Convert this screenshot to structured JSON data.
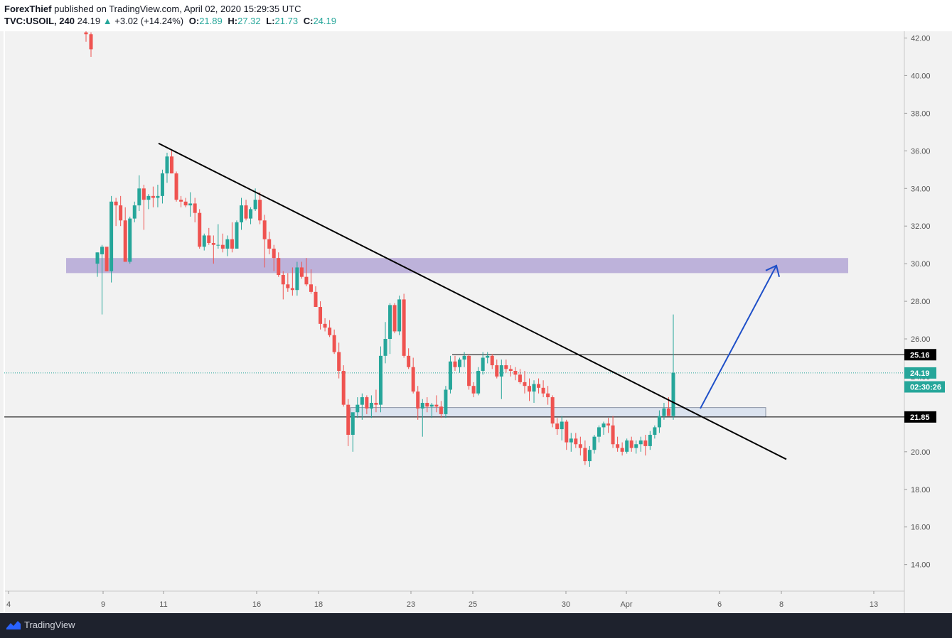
{
  "header": {
    "author": "ForexThief",
    "published_text": "published on TradingView.com, April 02, 2020 15:29:35 UTC",
    "symbol": "TVC:USOIL, 240",
    "last": "24.19",
    "change_arrow": "▲",
    "change": "+3.02 (+14.24%)",
    "open_label": "O:",
    "open": "21.89",
    "high_label": "H:",
    "high": "27.32",
    "low_label": "L:",
    "low": "21.73",
    "close_label": "C:",
    "close": "24.19"
  },
  "footer": {
    "brand": "TradingView",
    "logo_icon": "tradingview-logo-icon"
  },
  "colors": {
    "up": "#26a69a",
    "down": "#ef5350",
    "zone": "#b4a7d6",
    "support_zone": "#dbe3ef",
    "arrow": "#1e4fc8",
    "trendline": "#000000"
  },
  "chart_data": {
    "type": "candlestick",
    "symbol": "TVC:USOIL",
    "interval": "240",
    "y_ticks": [
      "42.00",
      "40.00",
      "38.00",
      "36.00",
      "34.00",
      "32.00",
      "30.00",
      "28.00",
      "26.00",
      "24.00",
      "22.00",
      "20.00",
      "18.00",
      "16.00",
      "14.00"
    ],
    "x_ticks": [
      "4",
      "9",
      "11",
      "16",
      "18",
      "23",
      "25",
      "30",
      "Apr",
      "6",
      "8",
      "13"
    ],
    "ylim": [
      12.5,
      43.0
    ],
    "price_labels": [
      {
        "label": "25.16",
        "value": 25.16,
        "style": "level"
      },
      {
        "label": "24.19",
        "value": 24.19,
        "style": "last"
      },
      {
        "label": "02:30:26",
        "value": 23.45,
        "style": "countdown"
      },
      {
        "label": "21.85",
        "value": 21.85,
        "style": "level"
      }
    ],
    "candles": [
      [
        42.3,
        42.6,
        41.8,
        42.2
      ],
      [
        42.2,
        42.3,
        41.0,
        41.4
      ],
      [
        30.0,
        30.6,
        29.3,
        30.6
      ],
      [
        30.5,
        31.0,
        27.3,
        30.9
      ],
      [
        30.9,
        30.6,
        29.6,
        29.6
      ],
      [
        29.6,
        33.6,
        29.0,
        33.3
      ],
      [
        33.3,
        33.5,
        32.0,
        33.1
      ],
      [
        33.1,
        33.6,
        32.0,
        32.3
      ],
      [
        32.3,
        33.0,
        30.1,
        30.1
      ],
      [
        30.1,
        32.5,
        30.0,
        32.4
      ],
      [
        32.4,
        33.3,
        32.2,
        33.1
      ],
      [
        33.1,
        34.7,
        32.8,
        34.0
      ],
      [
        34.0,
        34.2,
        31.8,
        33.4
      ],
      [
        33.4,
        33.7,
        32.9,
        33.6
      ],
      [
        33.6,
        34.1,
        33.0,
        33.5
      ],
      [
        33.5,
        34.2,
        33.0,
        33.6
      ],
      [
        33.6,
        35.0,
        33.2,
        34.8
      ],
      [
        34.8,
        35.9,
        34.3,
        35.7
      ],
      [
        35.7,
        36.0,
        34.8,
        34.8
      ],
      [
        34.8,
        34.9,
        33.3,
        33.4
      ],
      [
        33.4,
        33.6,
        33.0,
        33.3
      ],
      [
        33.3,
        33.5,
        33.0,
        33.1
      ],
      [
        33.1,
        33.8,
        32.5,
        33.2
      ],
      [
        33.2,
        33.5,
        32.2,
        32.7
      ],
      [
        32.7,
        32.9,
        30.8,
        30.9
      ],
      [
        30.9,
        31.6,
        30.7,
        31.5
      ],
      [
        31.5,
        31.9,
        31.0,
        31.1
      ],
      [
        31.1,
        31.5,
        30.0,
        31.0
      ],
      [
        31.0,
        32.1,
        30.8,
        31.0
      ],
      [
        31.0,
        31.6,
        30.6,
        30.8
      ],
      [
        30.8,
        31.5,
        30.4,
        31.3
      ],
      [
        31.3,
        32.2,
        30.6,
        30.8
      ],
      [
        30.8,
        32.3,
        30.8,
        32.2
      ],
      [
        32.2,
        33.5,
        31.8,
        33.1
      ],
      [
        33.1,
        33.4,
        32.3,
        32.4
      ],
      [
        32.4,
        33.0,
        32.1,
        32.9
      ],
      [
        32.9,
        34.0,
        32.8,
        33.4
      ],
      [
        33.4,
        33.8,
        32.1,
        32.3
      ],
      [
        32.3,
        32.6,
        29.8,
        31.3
      ],
      [
        31.3,
        31.7,
        30.5,
        30.8
      ],
      [
        30.8,
        31.0,
        29.6,
        30.3
      ],
      [
        30.3,
        30.6,
        29.3,
        29.4
      ],
      [
        29.4,
        29.6,
        28.1,
        28.9
      ],
      [
        28.9,
        29.5,
        28.5,
        28.7
      ],
      [
        28.7,
        29.8,
        28.3,
        28.6
      ],
      [
        28.6,
        30.1,
        28.3,
        29.8
      ],
      [
        29.8,
        30.1,
        29.2,
        29.3
      ],
      [
        29.3,
        30.3,
        28.8,
        28.9
      ],
      [
        28.9,
        29.7,
        28.4,
        28.5
      ],
      [
        28.5,
        28.8,
        27.7,
        27.7
      ],
      [
        27.7,
        28.0,
        26.5,
        26.8
      ],
      [
        26.8,
        27.1,
        26.4,
        26.6
      ],
      [
        26.6,
        27.0,
        26.1,
        26.2
      ],
      [
        26.2,
        26.5,
        25.2,
        25.3
      ],
      [
        25.3,
        25.8,
        23.9,
        24.3
      ],
      [
        24.3,
        24.6,
        22.4,
        22.5
      ],
      [
        22.5,
        22.8,
        20.3,
        20.9
      ],
      [
        20.9,
        21.8,
        20.0,
        22.1
      ],
      [
        22.1,
        22.9,
        21.8,
        22.5
      ],
      [
        22.5,
        23.1,
        21.7,
        22.9
      ],
      [
        22.9,
        23.0,
        22.0,
        22.3
      ],
      [
        22.3,
        23.0,
        21.8,
        22.6
      ],
      [
        22.6,
        23.3,
        22.1,
        22.5
      ],
      [
        22.5,
        25.6,
        22.1,
        25.1
      ],
      [
        25.1,
        26.9,
        24.7,
        26.0
      ],
      [
        26.0,
        27.9,
        25.2,
        27.8
      ],
      [
        27.8,
        27.9,
        26.3,
        26.4
      ],
      [
        26.4,
        28.3,
        26.2,
        28.1
      ],
      [
        28.1,
        28.4,
        25.0,
        25.1
      ],
      [
        25.1,
        25.5,
        24.4,
        24.5
      ],
      [
        24.5,
        25.0,
        23.1,
        23.2
      ],
      [
        23.2,
        23.5,
        21.7,
        22.3
      ],
      [
        22.3,
        22.8,
        20.8,
        22.6
      ],
      [
        22.6,
        22.9,
        22.1,
        22.4
      ],
      [
        22.4,
        22.6,
        21.8,
        22.5
      ],
      [
        22.5,
        23.0,
        22.1,
        22.4
      ],
      [
        22.4,
        22.7,
        21.8,
        22.0
      ],
      [
        22.0,
        23.5,
        21.8,
        23.3
      ],
      [
        23.3,
        25.1,
        23.1,
        24.8
      ],
      [
        24.8,
        25.1,
        24.3,
        24.5
      ],
      [
        24.5,
        25.0,
        24.2,
        24.9
      ],
      [
        24.9,
        25.3,
        24.5,
        25.1
      ],
      [
        25.1,
        25.2,
        23.3,
        23.5
      ],
      [
        23.5,
        23.7,
        22.9,
        23.1
      ],
      [
        23.1,
        24.5,
        23.0,
        24.3
      ],
      [
        24.3,
        25.3,
        24.1,
        25.0
      ],
      [
        25.0,
        25.3,
        24.7,
        25.1
      ],
      [
        25.1,
        25.2,
        24.4,
        24.6
      ],
      [
        24.6,
        24.9,
        23.9,
        24.0
      ],
      [
        24.0,
        24.9,
        22.8,
        24.6
      ],
      [
        24.6,
        24.9,
        24.2,
        24.4
      ],
      [
        24.4,
        24.6,
        24.0,
        24.3
      ],
      [
        24.3,
        24.5,
        23.8,
        24.1
      ],
      [
        24.1,
        24.4,
        23.6,
        23.7
      ],
      [
        23.7,
        24.3,
        23.1,
        23.5
      ],
      [
        23.5,
        23.9,
        22.7,
        23.2
      ],
      [
        23.2,
        23.8,
        22.6,
        23.6
      ],
      [
        23.6,
        23.9,
        23.1,
        23.4
      ],
      [
        23.4,
        23.8,
        22.9,
        23.1
      ],
      [
        23.1,
        23.5,
        22.5,
        22.9
      ],
      [
        22.9,
        23.0,
        21.3,
        21.5
      ],
      [
        21.5,
        21.8,
        20.9,
        21.2
      ],
      [
        21.2,
        21.9,
        20.6,
        21.6
      ],
      [
        21.6,
        21.7,
        20.1,
        20.5
      ],
      [
        20.5,
        21.0,
        20.0,
        20.7
      ],
      [
        20.7,
        21.0,
        20.2,
        20.4
      ],
      [
        20.4,
        20.8,
        19.8,
        20.2
      ],
      [
        20.2,
        20.6,
        19.3,
        19.5
      ],
      [
        19.5,
        20.3,
        19.2,
        20.1
      ],
      [
        20.1,
        20.9,
        19.9,
        20.8
      ],
      [
        20.8,
        21.4,
        20.5,
        21.3
      ],
      [
        21.3,
        21.6,
        20.9,
        21.5
      ],
      [
        21.5,
        21.8,
        21.0,
        21.4
      ],
      [
        21.4,
        21.9,
        20.2,
        20.4
      ],
      [
        20.4,
        20.8,
        20.0,
        20.2
      ],
      [
        20.2,
        20.5,
        19.8,
        20.0
      ],
      [
        20.0,
        20.7,
        19.9,
        20.6
      ],
      [
        20.6,
        20.8,
        20.0,
        20.2
      ],
      [
        20.2,
        20.6,
        19.9,
        20.4
      ],
      [
        20.4,
        20.8,
        20.0,
        20.6
      ],
      [
        20.6,
        20.9,
        19.8,
        20.3
      ],
      [
        20.3,
        21.1,
        20.1,
        20.9
      ],
      [
        20.9,
        21.4,
        20.7,
        21.3
      ],
      [
        21.3,
        22.2,
        21.0,
        21.9
      ],
      [
        21.9,
        22.6,
        21.7,
        22.3
      ],
      [
        22.3,
        22.9,
        21.9,
        21.9
      ],
      [
        21.9,
        27.3,
        21.7,
        24.2
      ]
    ],
    "annotations": {
      "trendline": {
        "from": [
          "11",
          36.4
        ],
        "to": [
          "8",
          19.6
        ],
        "color": "#000000"
      },
      "resistance_zone": {
        "from": 29.5,
        "to": 30.3,
        "color": "#b4a7d6"
      },
      "support_zone": {
        "from": 21.85,
        "to": 22.35,
        "color": "#dbe3ef"
      },
      "horizontal_line_25_16": 25.16,
      "horizontal_line_21_85": 21.85,
      "projection_arrow": {
        "from": 22.3,
        "to": 29.9,
        "color": "#1e4fc8"
      }
    }
  }
}
